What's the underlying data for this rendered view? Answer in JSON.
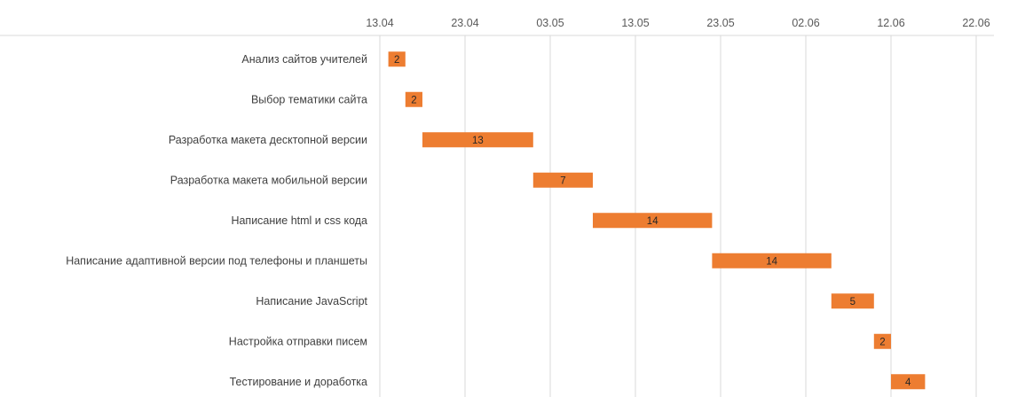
{
  "chart_data": {
    "type": "bar",
    "orientation": "horizontal",
    "subtype": "gantt",
    "x_axis_position": "top",
    "grid": true,
    "legend": "none",
    "bar_color": "#ED7D31",
    "grid_color": "#D9D9D9",
    "xlim": [
      "2024-04-13",
      "2024-06-22"
    ],
    "x_ticks": [
      {
        "date": "2024-04-13",
        "label": "13.04"
      },
      {
        "date": "2024-04-23",
        "label": "23.04"
      },
      {
        "date": "2024-05-03",
        "label": "03.05"
      },
      {
        "date": "2024-05-13",
        "label": "13.05"
      },
      {
        "date": "2024-05-23",
        "label": "23.05"
      },
      {
        "date": "2024-06-02",
        "label": "02.06"
      },
      {
        "date": "2024-06-12",
        "label": "12.06"
      },
      {
        "date": "2024-06-22",
        "label": "22.06"
      }
    ],
    "tasks": [
      {
        "label": "Анализ сайтов учителей",
        "start": "2024-04-14",
        "duration": 2
      },
      {
        "label": "Выбор тематики сайта",
        "start": "2024-04-16",
        "duration": 2
      },
      {
        "label": "Разработка макета десктопной версии",
        "start": "2024-04-18",
        "duration": 13
      },
      {
        "label": "Разработка макета мобильной версии",
        "start": "2024-05-01",
        "duration": 7
      },
      {
        "label": "Написание html и css кода",
        "start": "2024-05-08",
        "duration": 14
      },
      {
        "label": "Написание адаптивной версии под телефоны и планшеты",
        "start": "2024-05-22",
        "duration": 14
      },
      {
        "label": "Написание JavaScript",
        "start": "2024-06-05",
        "duration": 5
      },
      {
        "label": "Настройка отправки писем",
        "start": "2024-06-10",
        "duration": 2
      },
      {
        "label": "Тестирование и доработка",
        "start": "2024-06-12",
        "duration": 4
      }
    ]
  }
}
